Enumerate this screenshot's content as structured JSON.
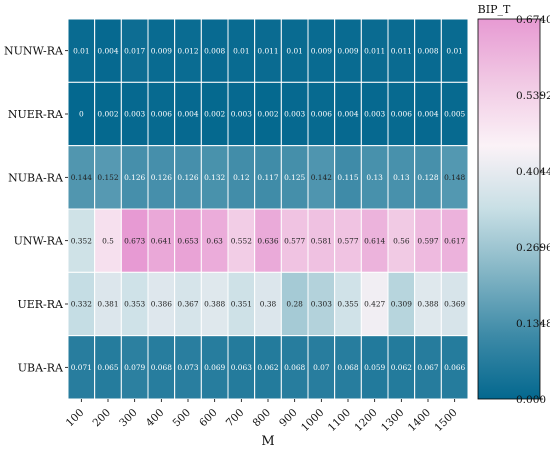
{
  "chart_data": {
    "type": "heatmap",
    "title": "",
    "xlabel": "M",
    "ylabel": "",
    "x": [
      "100",
      "200",
      "300",
      "400",
      "500",
      "600",
      "700",
      "800",
      "900",
      "1000",
      "1100",
      "1200",
      "1300",
      "1400",
      "1500"
    ],
    "y": [
      "NUNW-RA",
      "NUER-RA",
      "NUBA-RA",
      "UNW-RA",
      "UER-RA",
      "UBA-RA"
    ],
    "values": [
      [
        0.01,
        0.004,
        0.017,
        0.009,
        0.012,
        0.008,
        0.01,
        0.011,
        0.01,
        0.009,
        0.009,
        0.011,
        0.011,
        0.008,
        0.01
      ],
      [
        0,
        0.002,
        0.003,
        0.006,
        0.004,
        0.002,
        0.003,
        0.002,
        0.003,
        0.006,
        0.004,
        0.003,
        0.006,
        0.004,
        0.005
      ],
      [
        0.144,
        0.152,
        0.126,
        0.126,
        0.126,
        0.132,
        0.12,
        0.117,
        0.125,
        0.142,
        0.115,
        0.13,
        0.13,
        0.128,
        0.148
      ],
      [
        0.352,
        0.5,
        0.673,
        0.641,
        0.653,
        0.63,
        0.552,
        0.636,
        0.577,
        0.581,
        0.577,
        0.614,
        0.56,
        0.597,
        0.617
      ],
      [
        0.332,
        0.381,
        0.353,
        0.386,
        0.367,
        0.388,
        0.351,
        0.38,
        0.28,
        0.303,
        0.355,
        0.427,
        0.309,
        0.388,
        0.369
      ],
      [
        0.071,
        0.065,
        0.079,
        0.068,
        0.073,
        0.069,
        0.063,
        0.062,
        0.068,
        0.07,
        0.068,
        0.059,
        0.062,
        0.067,
        0.066
      ]
    ],
    "labels": [
      [
        "0.01",
        "0.004",
        "0.017",
        "0.009",
        "0.012",
        "0.008",
        "0.01",
        "0.011",
        "0.01",
        "0.009",
        "0.009",
        "0.011",
        "0.011",
        "0.008",
        "0.01"
      ],
      [
        "0",
        "0.002",
        "0.003",
        "0.006",
        "0.004",
        "0.002",
        "0.003",
        "0.002",
        "0.003",
        "0.006",
        "0.004",
        "0.003",
        "0.006",
        "0.004",
        "0.005"
      ],
      [
        "0.144",
        "0.152",
        "0.126",
        "0.126",
        "0.126",
        "0.132",
        "0.12",
        "0.117",
        "0.125",
        "0.142",
        "0.115",
        "0.13",
        "0.13",
        "0.128",
        "0.148"
      ],
      [
        "0.352",
        "0.5",
        "0.673",
        "0.641",
        "0.653",
        "0.63",
        "0.552",
        "0.636",
        "0.577",
        "0.581",
        "0.577",
        "0.614",
        "0.56",
        "0.597",
        "0.617"
      ],
      [
        "0.332",
        "0.381",
        "0.353",
        "0.386",
        "0.367",
        "0.388",
        "0.351",
        "0.38",
        "0.28",
        "0.303",
        "0.355",
        "0.427",
        "0.309",
        "0.388",
        "0.369"
      ],
      [
        "0.071",
        "0.065",
        "0.079",
        "0.068",
        "0.073",
        "0.069",
        "0.063",
        "0.062",
        "0.068",
        "0.07",
        "0.068",
        "0.059",
        "0.062",
        "0.067",
        "0.066"
      ]
    ],
    "colorbar": {
      "title": "BIP_T",
      "min": 0,
      "max": 0.674,
      "ticks": [
        "0.000",
        "0.1348",
        "0.2696",
        "0.4044",
        "0.5392",
        "0.6740"
      ],
      "tick_values": [
        0,
        0.1348,
        0.2696,
        0.4044,
        0.5392,
        0.674
      ]
    },
    "colormap": [
      "#04688f",
      "#3d8aa7",
      "#83b5c5",
      "#c8dfe5",
      "#fbf2f7",
      "#f1c9e4",
      "#e79ad3"
    ],
    "grid": false,
    "legend": "colorbar-right"
  }
}
